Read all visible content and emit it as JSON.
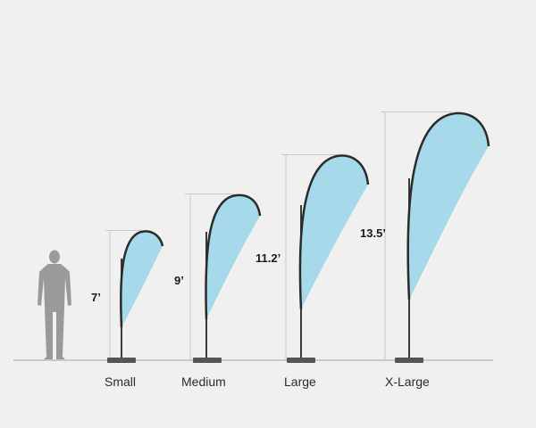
{
  "flags": [
    {
      "size": "Small",
      "height": "7’"
    },
    {
      "size": "Medium",
      "height": "9’"
    },
    {
      "size": "Large",
      "height": "11.2’"
    },
    {
      "size": "X-Large",
      "height": "13.5’"
    }
  ],
  "colors": {
    "background": "#f0f0f0",
    "flag_fill": "#a6daeb",
    "flag_border": "#2b2b2b",
    "pole": "#3a3a3a",
    "base": "#555555",
    "person": "#9a9a9a",
    "measure_line": "#c8c8c8",
    "ground": "#bdbdbd"
  },
  "icons": {
    "person": "person-silhouette-icon"
  }
}
